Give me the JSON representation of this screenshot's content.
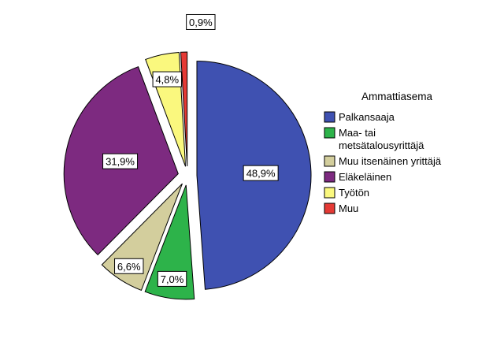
{
  "chart_data": {
    "type": "pie",
    "title": "",
    "legend_title": "Ammattiasema",
    "legend_position": "right",
    "exploded": true,
    "slices": [
      {
        "name": "Palkansaaja",
        "legend_lines": [
          "Palkansaaja"
        ],
        "value": 48.9,
        "label": "48,9%",
        "color": "#3F51B1"
      },
      {
        "name": "Maa- tai metsätalousyrittäjä",
        "legend_lines": [
          "Maa- tai",
          "metsätalousyrittäjä"
        ],
        "value": 7.0,
        "label": "7,0%",
        "color": "#2DB34A"
      },
      {
        "name": "Muu itsenäinen yrittäjä",
        "legend_lines": [
          "Muu itsenäinen yrittäjä"
        ],
        "value": 6.6,
        "label": "6,6%",
        "color": "#D3CE9D"
      },
      {
        "name": "Eläkeläinen",
        "legend_lines": [
          "Eläkeläinen"
        ],
        "value": 31.9,
        "label": "31,9%",
        "color": "#7D2A80"
      },
      {
        "name": "Työtön",
        "legend_lines": [
          "Työtön"
        ],
        "value": 4.8,
        "label": "4,8%",
        "color": "#FAF87E"
      },
      {
        "name": "Muu",
        "legend_lines": [
          "Muu"
        ],
        "value": 0.9,
        "label": "0,9%",
        "color": "#E53A35"
      }
    ]
  }
}
